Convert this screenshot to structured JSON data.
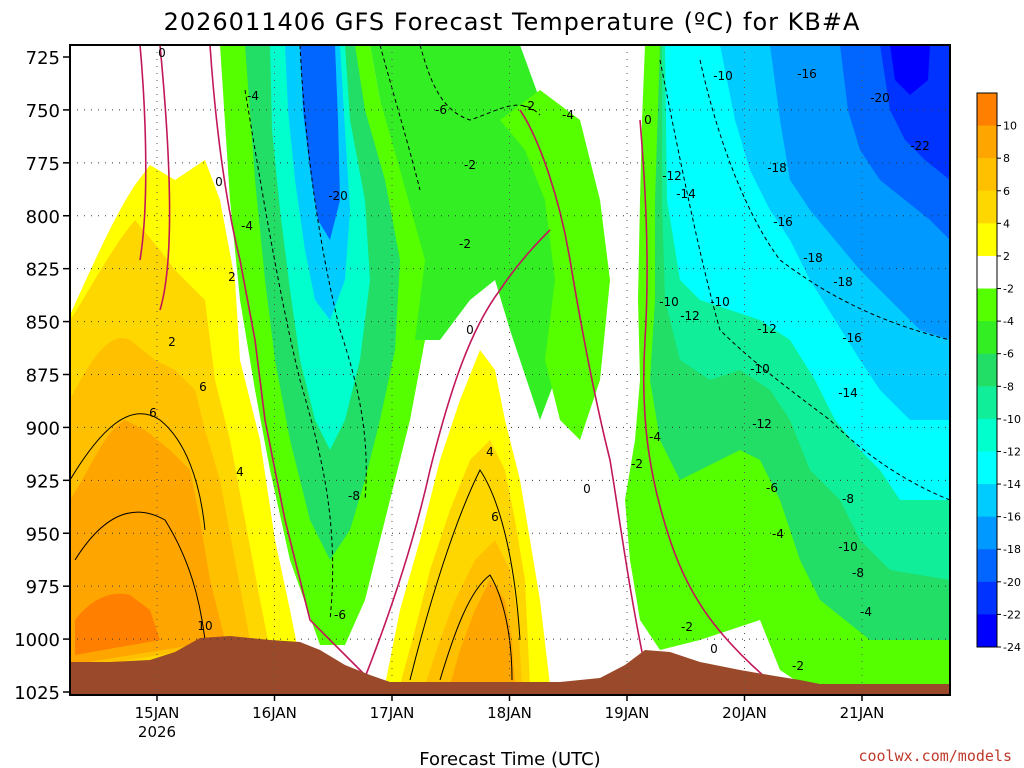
{
  "chart_data": {
    "type": "heatmap",
    "title": "2026011406 GFS Forecast Temperature (ºC) for KB#A",
    "xlabel": "Forecast Time (UTC)",
    "ylabel": "",
    "y_ticks": [
      "725",
      "750",
      "775",
      "800",
      "825",
      "850",
      "875",
      "900",
      "925",
      "950",
      "975",
      "1000",
      "1025"
    ],
    "x_ticks": [
      {
        "label": "15JAN",
        "sub": "2026"
      },
      {
        "label": "16JAN",
        "sub": ""
      },
      {
        "label": "17JAN",
        "sub": ""
      },
      {
        "label": "18JAN",
        "sub": ""
      },
      {
        "label": "19JAN",
        "sub": ""
      },
      {
        "label": "20JAN",
        "sub": ""
      },
      {
        "label": "21JAN",
        "sub": ""
      }
    ],
    "colorbar": {
      "labels": [
        "10",
        "8",
        "6",
        "4",
        "2",
        "-2",
        "-4",
        "-6",
        "-8",
        "-10",
        "-12",
        "-14",
        "-16",
        "-18",
        "-20",
        "-22",
        "-24"
      ],
      "colors": [
        "#ff8000",
        "#ffa500",
        "#ffc000",
        "#ffd700",
        "#ffff00",
        "#ffffff",
        "#55ff00",
        "#33ee22",
        "#22dd66",
        "#11ee99",
        "#00ffcc",
        "#00ffff",
        "#00ccff",
        "#0099ff",
        "#0066ff",
        "#0033ff",
        "#0000ff"
      ]
    },
    "contour_labels": [
      "0",
      "-4",
      "-6",
      "-2",
      "-4",
      "0",
      "-10",
      "-16",
      "-20",
      "-22",
      "0",
      "-2",
      "-12",
      "-4",
      "-14",
      "-18",
      "-20",
      "-16",
      "-2",
      "-18",
      "-18",
      "-10",
      "-10",
      "2",
      "-12",
      "0",
      "-12",
      "-16",
      "2",
      "-10",
      "6",
      "6",
      "-14",
      "4",
      "4",
      "-4",
      "-12",
      "-8",
      "-2",
      "-6",
      "-8",
      "6",
      "0",
      "-10",
      "-4",
      "-8",
      "10",
      "-6",
      "-4",
      "-2",
      "0",
      "-2"
    ],
    "credit": "coolwx.com/models"
  }
}
